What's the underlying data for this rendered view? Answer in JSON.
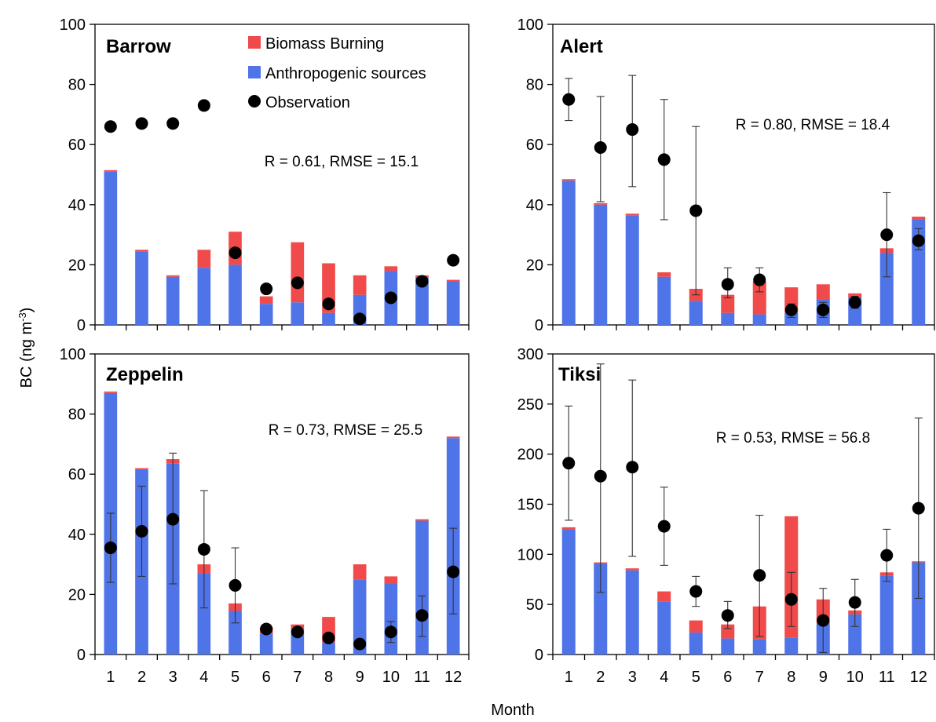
{
  "chart_data": {
    "type": "bar",
    "ylabel_prefix": "BC (ng m",
    "ylabel_exp": "-3",
    "ylabel_suffix": ")",
    "xlabel": "Month",
    "legend": {
      "placement": "top-left-panel",
      "items": [
        {
          "label": "Biomass Burning",
          "kind": "bar",
          "color": "#f04a4a"
        },
        {
          "label": "Anthropogenic sources",
          "kind": "bar",
          "color": "#4f74e8"
        },
        {
          "label": "Observation",
          "kind": "dot",
          "color": "#000000"
        }
      ]
    },
    "colors": {
      "anthropogenic": "#4f74e8",
      "biomass": "#f04a4a",
      "observation": "#000000"
    },
    "panels": [
      {
        "title": "Barrow",
        "stats": "R = 0.61, RMSE = 15.1",
        "ylim": [
          0,
          100
        ],
        "yticks": [
          0,
          20,
          40,
          60,
          80,
          100
        ],
        "categories": [
          "1",
          "2",
          "3",
          "4",
          "5",
          "6",
          "7",
          "8",
          "9",
          "10",
          "11",
          "12"
        ],
        "anthropogenic": [
          51,
          24.5,
          16,
          19,
          20,
          7,
          7.5,
          4,
          10,
          18,
          16,
          14.5
        ],
        "biomass": [
          0.5,
          0.5,
          0.5,
          6,
          11,
          2.5,
          20,
          16.5,
          6.5,
          1.5,
          0.5,
          0.5
        ],
        "observation": [
          66,
          67,
          67,
          73,
          24,
          12,
          14,
          7,
          2,
          9,
          14.5,
          21.5
        ],
        "error_low": [],
        "error_high": []
      },
      {
        "title": "Alert",
        "stats": "R = 0.80, RMSE = 18.4",
        "ylim": [
          0,
          100
        ],
        "yticks": [
          0,
          20,
          40,
          60,
          80,
          100
        ],
        "categories": [
          "1",
          "2",
          "3",
          "4",
          "5",
          "6",
          "7",
          "8",
          "9",
          "10",
          "11",
          "12"
        ],
        "anthropogenic": [
          48,
          40,
          36.5,
          16,
          8,
          4,
          3.5,
          4,
          8.5,
          9,
          24,
          35
        ],
        "biomass": [
          0.5,
          0.5,
          0.5,
          1.5,
          4,
          6,
          11,
          8.5,
          5,
          1.5,
          1.5,
          1
        ],
        "observation": [
          75,
          59,
          65,
          55,
          38,
          13.5,
          15,
          5,
          5,
          7.5,
          30,
          28
        ],
        "error_low": [
          68,
          41,
          46,
          35,
          10,
          9,
          11,
          2.5,
          2.5,
          5.5,
          16,
          25
        ],
        "error_high": [
          82,
          76,
          83,
          75,
          66,
          19,
          19,
          7,
          7.5,
          9.5,
          44,
          32
        ]
      },
      {
        "title": "Zeppelin",
        "stats": "R = 0.73, RMSE = 25.5",
        "ylim": [
          0,
          100
        ],
        "yticks": [
          0,
          20,
          40,
          60,
          80,
          100
        ],
        "categories": [
          "1",
          "2",
          "3",
          "4",
          "5",
          "6",
          "7",
          "8",
          "9",
          "10",
          "11",
          "12"
        ],
        "anthropogenic": [
          87,
          61.5,
          63.5,
          27,
          14.5,
          7,
          8.5,
          4,
          25,
          23.5,
          44.5,
          72
        ],
        "biomass": [
          0.5,
          0.5,
          1.5,
          3,
          2.5,
          2,
          1.5,
          8.5,
          5,
          2.5,
          0.5,
          0.5
        ],
        "observation": [
          35.5,
          41,
          45,
          35,
          23,
          8.5,
          7.5,
          5.5,
          3.5,
          7.5,
          13,
          27.5
        ],
        "error_low": [
          24,
          26,
          23.5,
          15.5,
          10.5,
          7.5,
          6,
          4.5,
          2.5,
          4,
          6,
          13.5
        ],
        "error_high": [
          47,
          56,
          67,
          54.5,
          35.5,
          9.5,
          9,
          6.5,
          4.5,
          11,
          19.5,
          42
        ]
      },
      {
        "title": "Tiksi",
        "stats": "R = 0.53, RMSE = 56.8",
        "ylim": [
          0,
          300
        ],
        "yticks": [
          0,
          50,
          100,
          150,
          200,
          250,
          300
        ],
        "categories": [
          "1",
          "2",
          "3",
          "4",
          "5",
          "6",
          "7",
          "8",
          "9",
          "10",
          "11",
          "12"
        ],
        "anthropogenic": [
          125,
          91,
          84,
          53,
          22,
          16,
          15,
          17,
          31,
          40,
          79,
          92
        ],
        "biomass": [
          2,
          1,
          2,
          10,
          12,
          14,
          33,
          121,
          24,
          4,
          3,
          1
        ],
        "observation": [
          191,
          178,
          187,
          128,
          63,
          39,
          79,
          55,
          34,
          52,
          99,
          146
        ],
        "error_low": [
          134,
          62,
          98,
          89,
          48,
          26,
          18,
          28,
          2,
          28,
          73,
          56
        ],
        "error_high": [
          248,
          290,
          274,
          167,
          78,
          53,
          139,
          82,
          66,
          75,
          125,
          236
        ]
      }
    ]
  }
}
